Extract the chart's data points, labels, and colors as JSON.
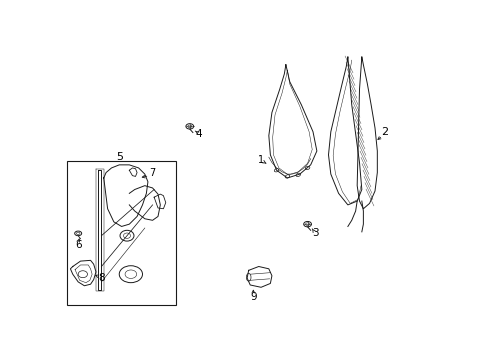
{
  "background_color": "#ffffff",
  "line_color": "#1a1a1a",
  "text_color": "#000000",
  "figsize": [
    4.89,
    3.6
  ],
  "dpi": 100,
  "xlim": [
    0,
    489
  ],
  "ylim": [
    0,
    360
  ]
}
